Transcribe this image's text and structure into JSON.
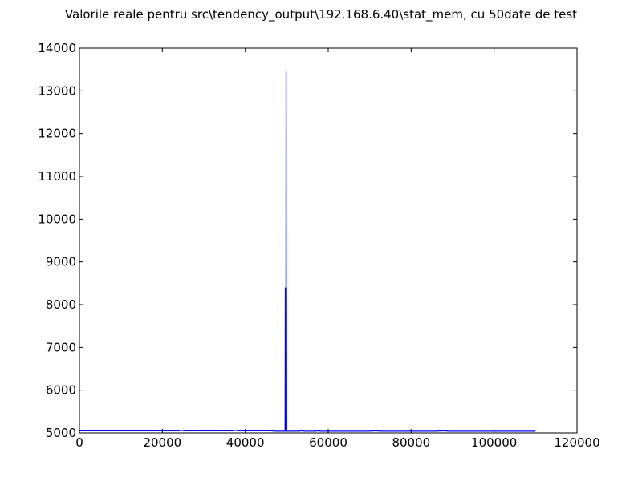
{
  "chart_data": {
    "type": "line",
    "title": "Valorile reale pentru src\\tendency_output\\192.168.6.40\\stat_mem, cu 50date de test",
    "xlabel": "",
    "ylabel": "",
    "xlim": [
      0,
      120000
    ],
    "ylim": [
      5000,
      14000
    ],
    "x_ticks": [
      0,
      20000,
      40000,
      60000,
      80000,
      100000,
      120000
    ],
    "y_ticks": [
      5000,
      6000,
      7000,
      8000,
      9000,
      10000,
      11000,
      12000,
      13000,
      14000
    ],
    "grid": false,
    "legend": "none",
    "series": [
      {
        "color": "#0000ff",
        "x": [
          0,
          24000,
          24600,
          25200,
          37000,
          37600,
          38200,
          46000,
          47400,
          49000,
          49400,
          49600,
          49650,
          49700,
          49750,
          49800,
          49850,
          49900,
          49950,
          50000,
          50050,
          50200,
          53000,
          53600,
          54200,
          57000,
          57600,
          58200,
          70000,
          71500,
          72500,
          86000,
          87800,
          89000,
          100000,
          110000
        ],
        "y": [
          5050,
          5050,
          5065,
          5050,
          5050,
          5065,
          5050,
          5050,
          5040,
          5040,
          5040,
          5040,
          8400,
          5040,
          8400,
          5040,
          13480,
          5040,
          8400,
          5040,
          5040,
          5040,
          5040,
          5050,
          5040,
          5040,
          5050,
          5040,
          5040,
          5050,
          5040,
          5040,
          5050,
          5040,
          5040,
          5040
        ]
      }
    ]
  }
}
